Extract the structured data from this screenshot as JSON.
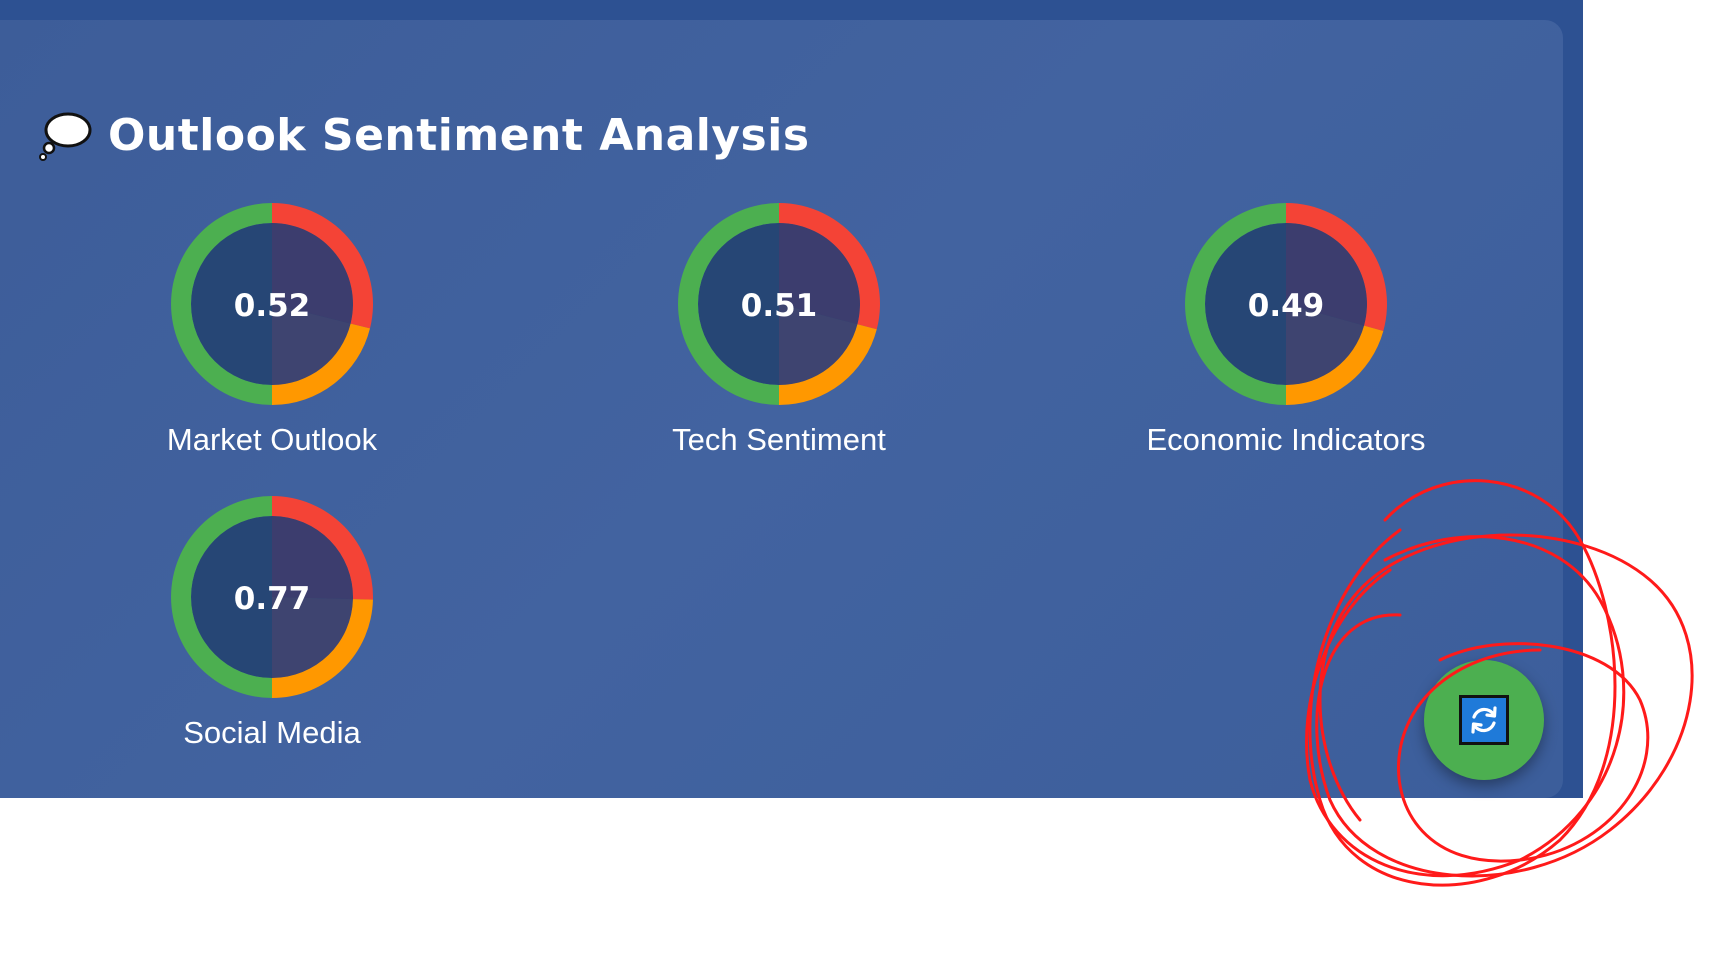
{
  "header": {
    "title": "Outlook Sentiment Analysis",
    "icon": "thought-balloon-icon"
  },
  "gauges": [
    {
      "label": "Market Outlook",
      "value_text": "0.52",
      "value": 0.52
    },
    {
      "label": "Tech Sentiment",
      "value_text": "0.51",
      "value": 0.51
    },
    {
      "label": "Economic Indicators",
      "value_text": "0.49",
      "value": 0.49
    },
    {
      "label": "Social Media",
      "value_text": "0.77",
      "value": 0.77
    }
  ],
  "refresh_button": {
    "icon": "refresh-icon"
  },
  "colors": {
    "positive": "#4caf50",
    "negative": "#f44336",
    "neutral": "#ff9800",
    "annotation": "#ff1a1a"
  }
}
